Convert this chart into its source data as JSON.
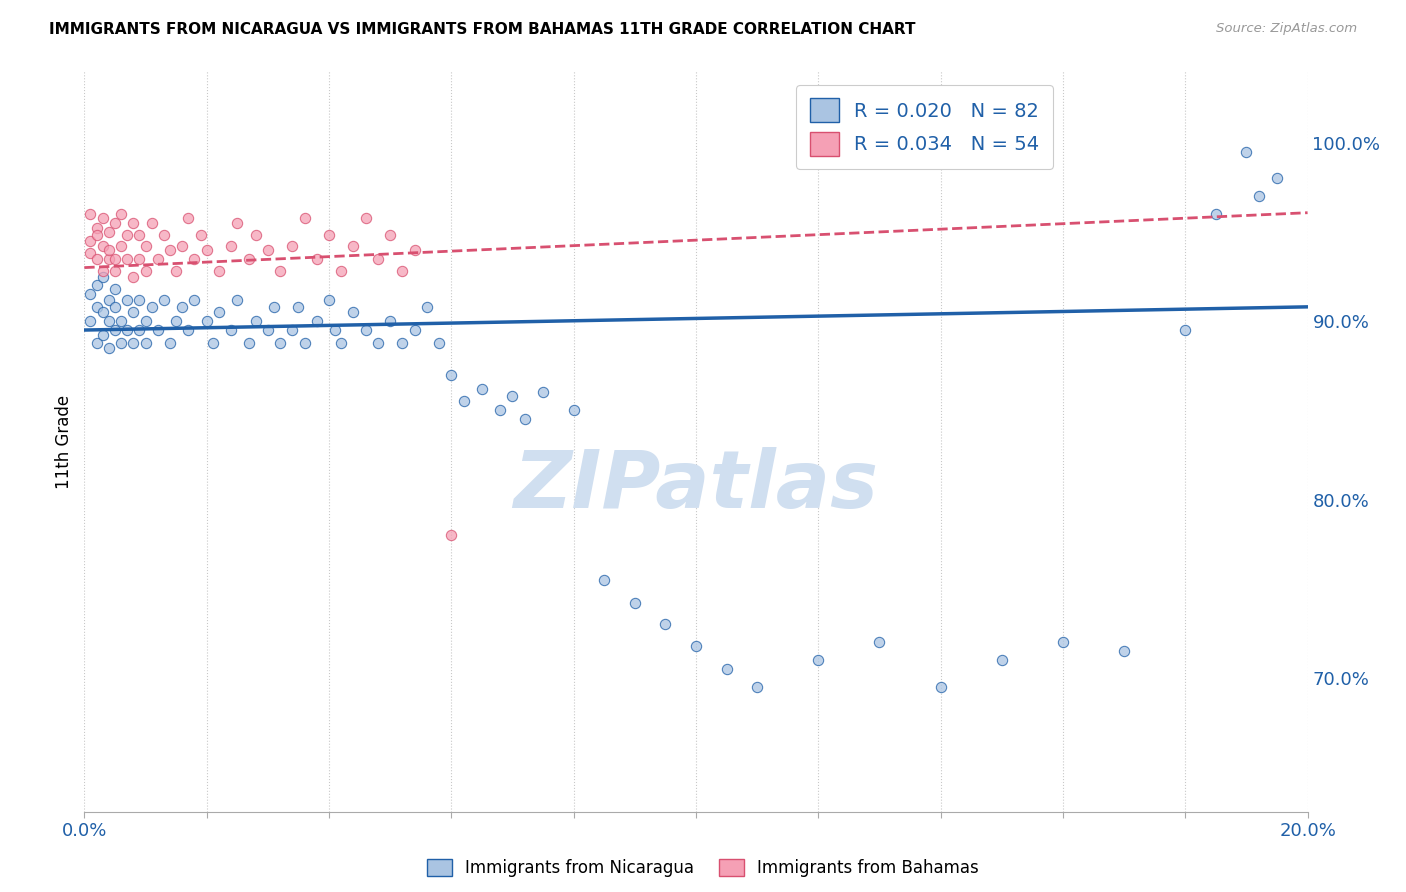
{
  "title": "IMMIGRANTS FROM NICARAGUA VS IMMIGRANTS FROM BAHAMAS 11TH GRADE CORRELATION CHART",
  "source": "Source: ZipAtlas.com",
  "ylabel": "11th Grade",
  "ylabel_right_ticks": [
    "70.0%",
    "80.0%",
    "90.0%",
    "100.0%"
  ],
  "ylabel_right_vals": [
    0.7,
    0.8,
    0.9,
    1.0
  ],
  "xlim": [
    0.0,
    0.2
  ],
  "ylim": [
    0.625,
    1.04
  ],
  "r_nicaragua": 0.02,
  "n_nicaragua": 82,
  "r_bahamas": 0.034,
  "n_bahamas": 54,
  "color_nicaragua": "#aac4e2",
  "color_bahamas": "#f5a0b5",
  "line_color_nicaragua": "#2060a8",
  "line_color_bahamas": "#d85070",
  "watermark_text": "ZIPatlas",
  "watermark_color": "#d0dff0",
  "background_color": "#ffffff",
  "scatter_alpha": 0.75,
  "scatter_size": 55,
  "nicaragua_x": [
    0.001,
    0.001,
    0.002,
    0.002,
    0.002,
    0.003,
    0.003,
    0.003,
    0.004,
    0.004,
    0.004,
    0.005,
    0.005,
    0.005,
    0.006,
    0.006,
    0.007,
    0.007,
    0.008,
    0.008,
    0.009,
    0.009,
    0.01,
    0.01,
    0.011,
    0.012,
    0.013,
    0.014,
    0.015,
    0.016,
    0.017,
    0.018,
    0.02,
    0.021,
    0.022,
    0.024,
    0.025,
    0.027,
    0.028,
    0.03,
    0.031,
    0.032,
    0.034,
    0.035,
    0.036,
    0.038,
    0.04,
    0.041,
    0.042,
    0.044,
    0.046,
    0.048,
    0.05,
    0.052,
    0.054,
    0.056,
    0.058,
    0.06,
    0.062,
    0.065,
    0.068,
    0.07,
    0.072,
    0.075,
    0.08,
    0.085,
    0.09,
    0.095,
    0.1,
    0.105,
    0.11,
    0.12,
    0.13,
    0.14,
    0.15,
    0.16,
    0.17,
    0.18,
    0.185,
    0.19,
    0.192,
    0.195
  ],
  "nicaragua_y": [
    0.9,
    0.915,
    0.908,
    0.92,
    0.888,
    0.905,
    0.892,
    0.925,
    0.9,
    0.912,
    0.885,
    0.908,
    0.895,
    0.918,
    0.9,
    0.888,
    0.912,
    0.895,
    0.905,
    0.888,
    0.912,
    0.895,
    0.9,
    0.888,
    0.908,
    0.895,
    0.912,
    0.888,
    0.9,
    0.908,
    0.895,
    0.912,
    0.9,
    0.888,
    0.905,
    0.895,
    0.912,
    0.888,
    0.9,
    0.895,
    0.908,
    0.888,
    0.895,
    0.908,
    0.888,
    0.9,
    0.912,
    0.895,
    0.888,
    0.905,
    0.895,
    0.888,
    0.9,
    0.888,
    0.895,
    0.908,
    0.888,
    0.87,
    0.855,
    0.862,
    0.85,
    0.858,
    0.845,
    0.86,
    0.85,
    0.755,
    0.742,
    0.73,
    0.718,
    0.705,
    0.695,
    0.71,
    0.72,
    0.695,
    0.71,
    0.72,
    0.715,
    0.895,
    0.96,
    0.995,
    0.97,
    0.98
  ],
  "bahamas_x": [
    0.001,
    0.001,
    0.001,
    0.002,
    0.002,
    0.002,
    0.003,
    0.003,
    0.003,
    0.004,
    0.004,
    0.004,
    0.005,
    0.005,
    0.005,
    0.006,
    0.006,
    0.007,
    0.007,
    0.008,
    0.008,
    0.009,
    0.009,
    0.01,
    0.01,
    0.011,
    0.012,
    0.013,
    0.014,
    0.015,
    0.016,
    0.017,
    0.018,
    0.019,
    0.02,
    0.022,
    0.024,
    0.025,
    0.027,
    0.028,
    0.03,
    0.032,
    0.034,
    0.036,
    0.038,
    0.04,
    0.042,
    0.044,
    0.046,
    0.048,
    0.05,
    0.052,
    0.054,
    0.06
  ],
  "bahamas_y": [
    0.945,
    0.96,
    0.938,
    0.952,
    0.935,
    0.948,
    0.942,
    0.928,
    0.958,
    0.935,
    0.95,
    0.94,
    0.928,
    0.955,
    0.935,
    0.942,
    0.96,
    0.935,
    0.948,
    0.925,
    0.955,
    0.935,
    0.948,
    0.942,
    0.928,
    0.955,
    0.935,
    0.948,
    0.94,
    0.928,
    0.942,
    0.958,
    0.935,
    0.948,
    0.94,
    0.928,
    0.942,
    0.955,
    0.935,
    0.948,
    0.94,
    0.928,
    0.942,
    0.958,
    0.935,
    0.948,
    0.928,
    0.942,
    0.958,
    0.935,
    0.948,
    0.928,
    0.94,
    0.78
  ]
}
